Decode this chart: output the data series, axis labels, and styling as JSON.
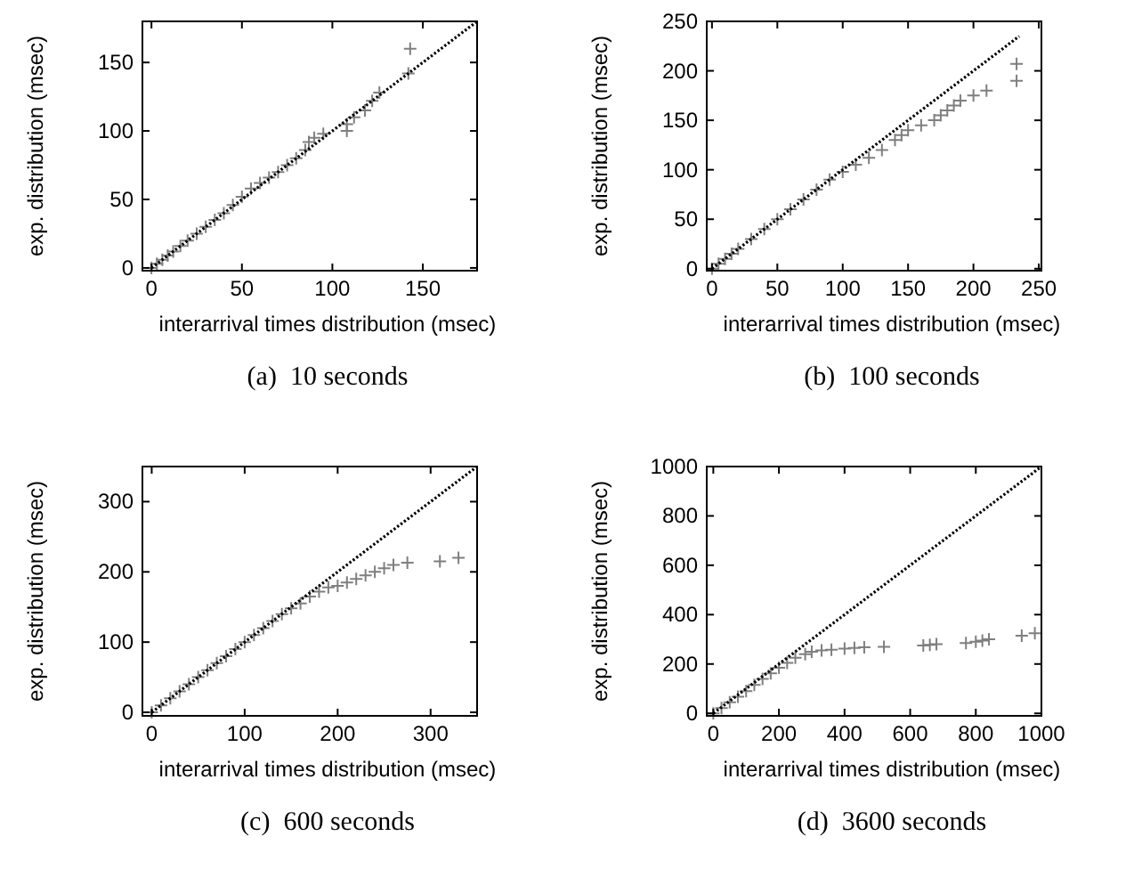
{
  "chart_data": [
    {
      "type": "scatter",
      "title": "(a)  10 seconds",
      "xlabel": "interarrival times distribution (msec)",
      "ylabel": "exp. distribution (msec)",
      "xlim": [
        -5,
        180
      ],
      "ylim": [
        -2,
        180
      ],
      "xticks": [
        0,
        50,
        100,
        150
      ],
      "yticks": [
        0,
        50,
        100,
        150
      ],
      "grid": false,
      "series": [
        {
          "marker": "cross",
          "color": "#7f7f7f",
          "x": [
            0,
            3,
            6,
            9,
            12,
            16,
            20,
            25,
            30,
            35,
            40,
            45,
            50,
            55,
            60,
            65,
            70,
            75,
            80,
            85,
            87,
            90,
            95,
            108,
            108,
            112,
            118,
            122,
            126,
            142,
            143
          ],
          "values": [
            0,
            3,
            6,
            9,
            12,
            16,
            20,
            25,
            30,
            35,
            40,
            46,
            52,
            58,
            62,
            66,
            70,
            75,
            80,
            86,
            92,
            95,
            98,
            100,
            105,
            110,
            115,
            122,
            128,
            142,
            160
          ]
        },
        {
          "type": "line",
          "line_style": "dotted",
          "color": "#000000",
          "x": [
            0,
            180
          ],
          "values": [
            0,
            180
          ]
        }
      ]
    },
    {
      "type": "scatter",
      "title": "(b)  100 seconds",
      "xlabel": "interarrival times distribution (msec)",
      "ylabel": "exp. distribution (msec)",
      "xlim": [
        -4,
        252
      ],
      "ylim": [
        -2,
        250
      ],
      "xticks": [
        0,
        50,
        100,
        150,
        200,
        250
      ],
      "yticks": [
        0,
        50,
        100,
        150,
        200,
        250
      ],
      "grid": false,
      "series": [
        {
          "marker": "cross",
          "color": "#7f7f7f",
          "x": [
            0,
            5,
            10,
            15,
            20,
            30,
            40,
            50,
            60,
            70,
            80,
            90,
            100,
            110,
            120,
            130,
            140,
            145,
            150,
            160,
            170,
            175,
            180,
            185,
            190,
            200,
            210,
            233,
            233
          ],
          "values": [
            0,
            5,
            10,
            15,
            20,
            30,
            40,
            50,
            60,
            70,
            80,
            90,
            98,
            105,
            112,
            120,
            130,
            135,
            140,
            145,
            150,
            155,
            160,
            165,
            170,
            175,
            180,
            190,
            207
          ]
        },
        {
          "type": "line",
          "line_style": "dotted",
          "color": "#000000",
          "x": [
            0,
            235
          ],
          "values": [
            0,
            235
          ]
        }
      ]
    },
    {
      "type": "scatter",
      "title": "(c)  600 seconds",
      "xlabel": "interarrival times distribution (msec)",
      "ylabel": "exp. distribution (msec)",
      "xlim": [
        -10,
        350
      ],
      "ylim": [
        -5,
        350
      ],
      "xticks": [
        0,
        100,
        200,
        300
      ],
      "yticks": [
        0,
        100,
        200,
        300
      ],
      "grid": false,
      "series": [
        {
          "marker": "cross",
          "color": "#7f7f7f",
          "x": [
            0,
            10,
            20,
            30,
            40,
            50,
            60,
            70,
            80,
            90,
            100,
            110,
            120,
            130,
            140,
            150,
            160,
            170,
            180,
            190,
            200,
            210,
            220,
            230,
            240,
            250,
            260,
            275,
            310,
            330
          ],
          "values": [
            0,
            10,
            20,
            30,
            40,
            50,
            60,
            70,
            80,
            90,
            100,
            110,
            120,
            130,
            140,
            148,
            155,
            165,
            172,
            178,
            180,
            185,
            190,
            195,
            200,
            205,
            210,
            213,
            215,
            220
          ]
        },
        {
          "type": "line",
          "line_style": "dotted",
          "color": "#000000",
          "x": [
            0,
            350
          ],
          "values": [
            0,
            350
          ]
        }
      ]
    },
    {
      "type": "scatter",
      "title": "(d)  3600 seconds",
      "xlabel": "interarrival times distribution (msec)",
      "ylabel": "exp. distribution (msec)",
      "xlim": [
        -20,
        1000
      ],
      "ylim": [
        -10,
        1000
      ],
      "xticks": [
        0,
        200,
        400,
        600,
        800,
        1000
      ],
      "yticks": [
        0,
        200,
        400,
        600,
        800,
        1000
      ],
      "grid": false,
      "series": [
        {
          "marker": "cross",
          "color": "#7f7f7f",
          "x": [
            0,
            25,
            50,
            75,
            100,
            125,
            150,
            175,
            200,
            225,
            250,
            280,
            300,
            330,
            360,
            400,
            430,
            460,
            520,
            640,
            660,
            680,
            770,
            800,
            820,
            840,
            940,
            980
          ],
          "values": [
            0,
            22,
            45,
            68,
            90,
            115,
            140,
            162,
            185,
            205,
            225,
            240,
            250,
            255,
            258,
            262,
            265,
            268,
            270,
            275,
            278,
            280,
            285,
            290,
            295,
            300,
            315,
            325
          ]
        },
        {
          "type": "line",
          "line_style": "dotted",
          "color": "#000000",
          "x": [
            0,
            1000
          ],
          "values": [
            0,
            1000
          ]
        }
      ]
    }
  ]
}
